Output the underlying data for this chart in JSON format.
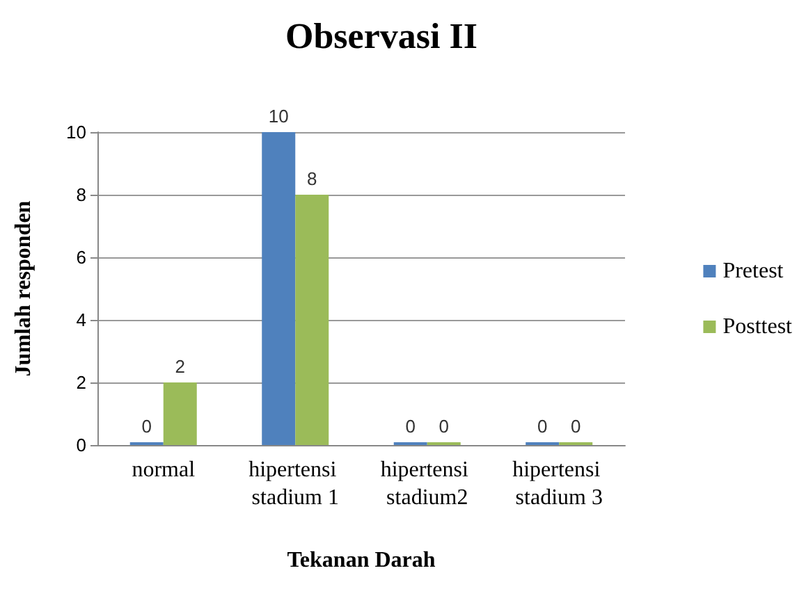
{
  "chart_data": {
    "type": "bar",
    "title": "Observasi II",
    "xlabel": "Tekanan Darah",
    "ylabel": "Jumlah responden",
    "categories": [
      "normal",
      "hipertensi stadium 1",
      "hipertensi stadium2",
      "hipertensi stadium 3"
    ],
    "series": [
      {
        "name": "Pretest",
        "color": "#4f81bd",
        "values": [
          0,
          10,
          0,
          0
        ]
      },
      {
        "name": "Posttest",
        "color": "#9bbb59",
        "values": [
          2,
          8,
          0,
          0
        ]
      }
    ],
    "ylim": [
      0,
      10
    ],
    "yticks": [
      0,
      2,
      4,
      6,
      8,
      10
    ],
    "grid": "y",
    "legend": "right",
    "data_labels": true
  }
}
